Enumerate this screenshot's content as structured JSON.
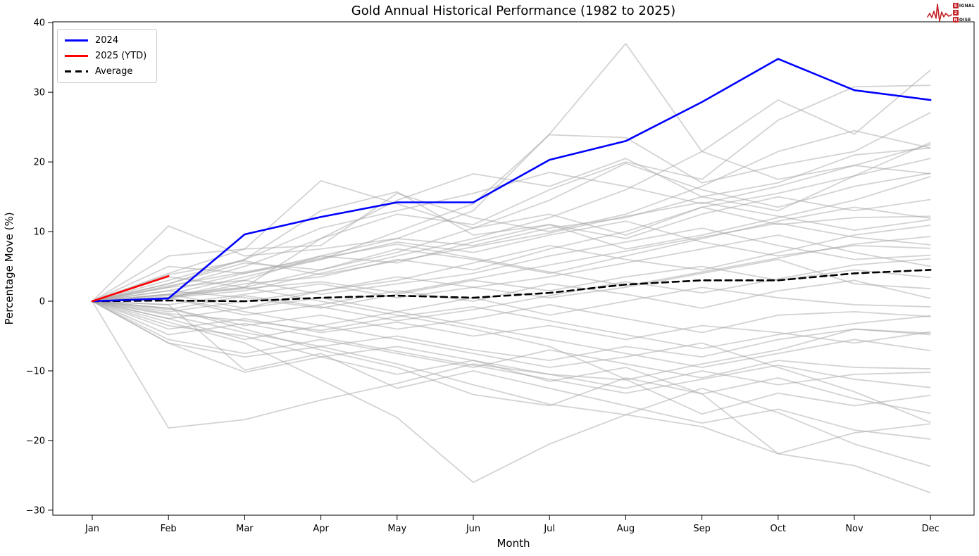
{
  "page": {
    "title": "Gold Annual Historical Performance (1982 to 2025)"
  },
  "logo": {
    "badge1": "S",
    "rest1": "IGNAL",
    "badge2": "2",
    "rest2": "",
    "badge3": "N",
    "rest3": "OISE"
  },
  "chart_data": {
    "type": "line",
    "title": "Gold Annual Historical Performance (1982 to 2025)",
    "xlabel": "Month",
    "ylabel": "Percentage Move (%)",
    "x_tick_labels": [
      "Jan",
      "Feb",
      "Mar",
      "Apr",
      "May",
      "Jun",
      "Jul",
      "Aug",
      "Sep",
      "Oct",
      "Nov",
      "Dec"
    ],
    "y_tick_values": [
      -30,
      -20,
      -10,
      0,
      10,
      20,
      30,
      40
    ],
    "y_tick_labels": [
      "−30",
      "−20",
      "−10",
      "0",
      "10",
      "20",
      "30",
      "40"
    ],
    "ylim": [
      -30.7,
      40.7
    ],
    "grid": false,
    "legend_position": "upper-left",
    "legend": [
      {
        "label": "2024",
        "color": "#0000ff",
        "dash": false
      },
      {
        "label": "2025 (YTD)",
        "color": "#ff0000",
        "dash": false
      },
      {
        "label": "Average",
        "color": "#000000",
        "dash": true
      }
    ],
    "series": [
      {
        "name": "2024",
        "color": "#0000ff",
        "width": 2.6,
        "dash": null,
        "values": [
          0,
          0.4,
          9.6,
          12.1,
          14.2,
          14.2,
          20.3,
          23.0,
          28.6,
          34.8,
          30.3,
          28.9
        ]
      },
      {
        "name": "2025 (YTD)",
        "color": "#ff0000",
        "width": 2.6,
        "dash": null,
        "values": [
          0,
          3.6
        ]
      },
      {
        "name": "Average",
        "color": "#000000",
        "width": 2.6,
        "dash": [
          9,
          6
        ],
        "values": [
          0,
          0.1,
          0.0,
          0.5,
          0.8,
          0.5,
          1.2,
          2.4,
          3.0,
          3.0,
          4.0,
          4.5
        ]
      }
    ],
    "historical_years": {
      "color": "#a8a8a8",
      "opacity": 0.5,
      "width": 1.8,
      "series": [
        [
          0,
          0.5,
          3,
          6.5,
          9,
          13,
          24,
          37,
          21.5,
          17.5,
          19.5,
          22.5
        ],
        [
          0,
          0.5,
          1.5,
          4,
          6.5,
          9,
          12,
          16,
          21.5,
          28.9,
          24,
          33.2
        ],
        [
          0,
          2,
          5,
          9,
          12.5,
          11,
          16,
          20,
          17.5,
          26,
          30.8,
          31
        ],
        [
          0,
          1,
          3.5,
          6,
          10,
          14,
          23.9,
          23.5,
          17,
          19.5,
          21.5,
          27.1
        ],
        [
          0,
          0.5,
          2,
          9,
          14.5,
          18.3,
          16.5,
          20.5,
          15,
          13,
          18,
          22.8
        ],
        [
          0,
          6.5,
          7.5,
          17.3,
          14,
          10.5,
          12.5,
          9.5,
          13.5,
          15.5,
          18,
          20.5
        ],
        [
          0,
          3,
          6,
          13,
          15.7,
          9.5,
          11,
          7.5,
          9.5,
          12,
          14.5,
          17.9
        ],
        [
          0,
          10.8,
          6.5,
          7.5,
          9,
          8,
          10.5,
          12,
          15,
          17,
          21,
          22
        ],
        [
          0,
          -18.2,
          -17,
          -14.2,
          -11.8,
          -9,
          -10.5,
          -11.3,
          -9,
          -7,
          -4,
          -4.6
        ],
        [
          0,
          -3,
          -6,
          -11.3,
          -16.7,
          -26,
          -20.5,
          -16.3,
          -18,
          -21.9,
          -18.9,
          -17.6
        ],
        [
          0,
          -1,
          -4,
          -7,
          -9.5,
          -13.4,
          -15,
          -11,
          -13.3,
          -21.9,
          -23.6,
          -27.5
        ],
        [
          0,
          -6,
          -8,
          -6.5,
          -9,
          -12,
          -14.8,
          -16.3,
          -12.5,
          -16,
          -20.5,
          -23.7
        ],
        [
          0,
          4,
          7.5,
          8,
          15.5,
          12,
          10,
          12.5,
          16.5,
          21.5,
          24.5,
          22
        ],
        [
          0,
          2.5,
          5.5,
          4.5,
          7,
          10.5,
          14.5,
          19.8,
          16,
          13.5,
          16.5,
          18.4
        ],
        [
          0,
          1.5,
          4,
          6.5,
          5.5,
          8.5,
          11,
          9,
          12.5,
          15,
          13,
          14.6
        ],
        [
          0,
          0.5,
          2.5,
          3.5,
          6,
          4.5,
          7.5,
          10,
          13.5,
          11,
          12,
          12.2
        ],
        [
          0,
          3.5,
          2,
          4.5,
          7.5,
          6,
          4,
          6.5,
          9,
          11.5,
          13.5,
          11.9
        ],
        [
          0,
          1,
          -1,
          1.5,
          3,
          5.5,
          8,
          6,
          4.5,
          7,
          9.5,
          10.9
        ],
        [
          0,
          5,
          4,
          6,
          8.5,
          7,
          9.5,
          11.5,
          8.5,
          6.5,
          8,
          7.6
        ],
        [
          0,
          2,
          3,
          1,
          2.5,
          4,
          6.5,
          8.5,
          10.5,
          8,
          6,
          6.6
        ],
        [
          0,
          -0.5,
          1,
          2.5,
          0.5,
          2,
          3.5,
          5.5,
          7.5,
          9.5,
          7,
          5
        ],
        [
          0,
          1.5,
          0.5,
          -1,
          1,
          3,
          1.5,
          3.5,
          5,
          3,
          4.5,
          3.4
        ],
        [
          0,
          -1.5,
          0,
          1.5,
          3.5,
          2,
          0.5,
          2,
          4,
          6,
          2.5,
          1.8
        ],
        [
          0,
          0.5,
          -2,
          -0.5,
          1.5,
          0,
          2.5,
          1,
          -1,
          1.5,
          3,
          0.4
        ],
        [
          0,
          -2.5,
          -1,
          0.5,
          -1.5,
          0.5,
          -2,
          0,
          2,
          0.5,
          -0.5,
          -0.8
        ],
        [
          0,
          -1,
          -3.5,
          -2,
          -4,
          -2.5,
          -0.5,
          -2.5,
          -4.5,
          -2,
          -1.5,
          -2.2
        ],
        [
          0,
          -4,
          -2.5,
          -4.5,
          -3,
          -5,
          -3.5,
          -5.5,
          -3.5,
          -4.5,
          -6,
          -4.4
        ],
        [
          0,
          -2,
          -4.5,
          -6.5,
          -5,
          -7,
          -8.5,
          -6.5,
          -8,
          -5.5,
          -4,
          -4.8
        ],
        [
          0,
          -5.5,
          -7.5,
          -5.5,
          -7.5,
          -9.5,
          -7,
          -9,
          -11,
          -8.5,
          -9.5,
          -9.7
        ],
        [
          0,
          -3.5,
          -5,
          -8,
          -10.5,
          -8.5,
          -10.5,
          -12.5,
          -10,
          -12,
          -10.5,
          -10.2
        ],
        [
          0,
          0.5,
          -1.5,
          -3.5,
          -5.5,
          -7.5,
          -9.5,
          -8,
          -6,
          -9.5,
          -13,
          -17.4
        ],
        [
          0,
          -6,
          -10.2,
          -8,
          -6.5,
          -8.5,
          -11.5,
          -9.5,
          -13.3,
          -11,
          -14,
          -16.1
        ],
        [
          0,
          2.5,
          6,
          10.5,
          13,
          15.5,
          18.5,
          16.5,
          14,
          16.5,
          19.5,
          18.3
        ],
        [
          0,
          -2.5,
          -5.5,
          -3.5,
          -1.5,
          -3.5,
          -5.5,
          -7.5,
          -9.5,
          -7.5,
          -5.5,
          -7.1
        ],
        [
          0,
          1,
          2,
          0,
          -2,
          -4,
          -6.5,
          -11.2,
          -16.2,
          -13.2,
          -15,
          -13.5
        ],
        [
          0,
          -0.5,
          -9.9,
          -7.5,
          -12.5,
          -10,
          -12.5,
          -15,
          -17.5,
          -15.5,
          -18.5,
          -19.8
        ],
        [
          0,
          0.8,
          1.8,
          2.8,
          1.2,
          3.2,
          5.2,
          7.2,
          9.2,
          11.2,
          9.2,
          8.1
        ],
        [
          0,
          -1.2,
          0.8,
          -0.8,
          -2.8,
          -1.2,
          0.8,
          2.8,
          1.2,
          3.2,
          5.2,
          6.1
        ],
        [
          0,
          2.2,
          4.2,
          6.2,
          8.2,
          6.2,
          4.2,
          2.2,
          4.2,
          6.2,
          8.2,
          9.3
        ],
        [
          0,
          -4.8,
          -3.2,
          -5.2,
          -7.2,
          -9.2,
          -11.2,
          -13.2,
          -11.2,
          -9.2,
          -11.2,
          -12.4
        ],
        [
          0,
          3.8,
          5.8,
          3.8,
          5.8,
          7.8,
          9.8,
          12.2,
          14.2,
          12.2,
          10.2,
          11.7
        ],
        [
          0,
          -1.8,
          -2.8,
          -4.2,
          -2.2,
          -0.8,
          -2.8,
          -4.8,
          -6.8,
          -4.8,
          -3.2,
          -2.1
        ]
      ]
    }
  }
}
